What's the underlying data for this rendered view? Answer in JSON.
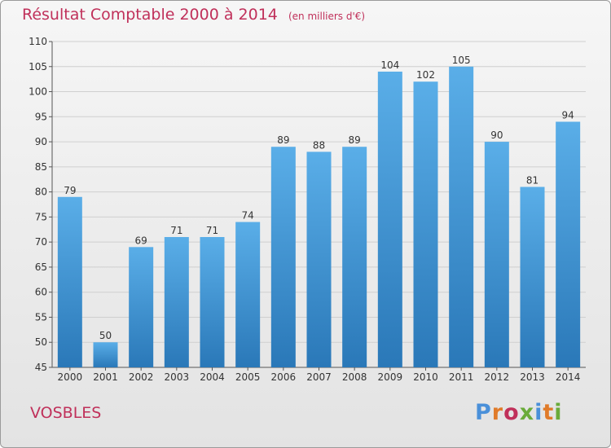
{
  "header": {
    "title": "Résultat Comptable 2000 à 2014",
    "unit": "(en milliers d'€)"
  },
  "footer": {
    "commune": "VOSBLES",
    "brand": "Proxiti"
  },
  "colors": {
    "bar_light": "#5aaee8",
    "bar_dark": "#2a78b8",
    "accent": "#c0305a",
    "brand_letters": [
      "#4a90d9",
      "#e07b2a",
      "#c0305a",
      "#6aab3a",
      "#4a90d9",
      "#e07b2a",
      "#6aab3a"
    ]
  },
  "chart_data": {
    "type": "bar",
    "title": "Résultat Comptable 2000 à 2014",
    "subtitle": "(en milliers d'€)",
    "xlabel": "",
    "ylabel": "",
    "categories": [
      "2000",
      "2001",
      "2002",
      "2003",
      "2004",
      "2005",
      "2006",
      "2007",
      "2008",
      "2009",
      "2010",
      "2011",
      "2012",
      "2013",
      "2014"
    ],
    "values": [
      79,
      50,
      69,
      71,
      71,
      74,
      89,
      88,
      89,
      104,
      102,
      105,
      90,
      81,
      94
    ],
    "ylim": [
      45,
      110
    ],
    "yticks": [
      45,
      50,
      55,
      60,
      65,
      70,
      75,
      80,
      85,
      90,
      95,
      100,
      105,
      110
    ],
    "grid": true,
    "legend": "none"
  }
}
